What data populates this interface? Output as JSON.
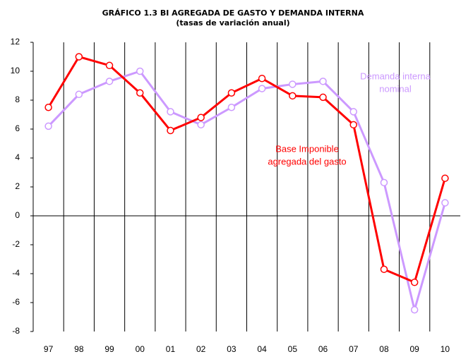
{
  "chart_data": {
    "type": "line",
    "title": "GRÁFICO 1.3 BI AGREGADA  DE GASTO  Y DEMANDA INTERNA",
    "subtitle": "(tasas de variación anual)",
    "categories": [
      "97",
      "98",
      "99",
      "00",
      "01",
      "02",
      "03",
      "04",
      "05",
      "06",
      "07",
      "08",
      "09",
      "10"
    ],
    "series": [
      {
        "label": [
          "Demanda interna",
          "nominal"
        ],
        "color": "#cc99ff",
        "values": [
          6.2,
          8.4,
          9.3,
          10,
          7.2,
          6.3,
          7.5,
          8.8,
          9.1,
          9.3,
          7.2,
          2.3,
          -6.5,
          0.9
        ]
      },
      {
        "label": [
          "Base Imponible",
          "agregada del gasto"
        ],
        "color": "#ff0000",
        "values": [
          7.5,
          11,
          10.4,
          8.5,
          5.9,
          6.8,
          8.5,
          9.5,
          8.3,
          8.2,
          6.3,
          -3.7,
          -4.6,
          2.6
        ]
      }
    ],
    "ylim": [
      -8,
      12
    ],
    "yticks": [
      -8,
      -6,
      -4,
      -2,
      0,
      2,
      4,
      6,
      8,
      10,
      12
    ]
  }
}
